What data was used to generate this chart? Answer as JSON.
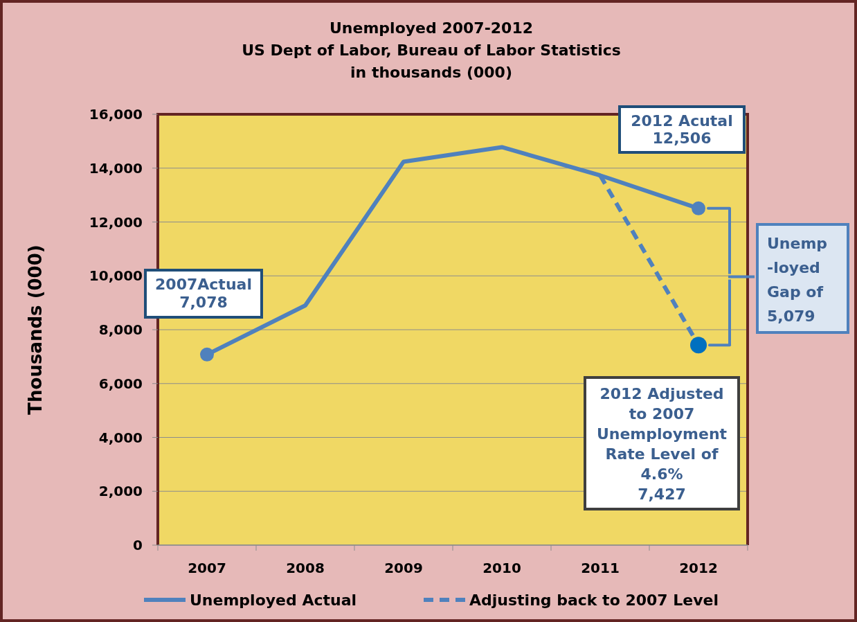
{
  "chart_data": {
    "type": "line",
    "title": "Unemployed 2007-2012\nUS Dept of Labor, Bureau of Labor Statistics\nin thousands (000)",
    "ylabel": "Thousands (000)",
    "categories": [
      "2007",
      "2008",
      "2009",
      "2010",
      "2011",
      "2012"
    ],
    "series": [
      {
        "name": "Unemployed Actual",
        "color": "#4f81bd",
        "values": [
          7078,
          8900,
          14240,
          14780,
          13730,
          12506
        ]
      },
      {
        "name": "Adjusting back to 2007 Level",
        "color": "#4f81bd",
        "line_style": "dashed",
        "values": [
          null,
          null,
          null,
          null,
          13730,
          7427
        ]
      },
      {
        "type": "scatter",
        "color": "#4f81bd",
        "marker": "circle",
        "values": [
          7078,
          null,
          null,
          null,
          null,
          12506
        ]
      },
      {
        "type": "scatter",
        "color": "#0070c0",
        "marker": "circle",
        "values": [
          null,
          null,
          null,
          null,
          null,
          7427
        ]
      }
    ],
    "ylim": [
      0,
      16000
    ],
    "yticks": [
      {
        "value": 0,
        "label": "0"
      },
      {
        "value": 2000,
        "label": "2,000"
      },
      {
        "value": 4000,
        "label": "4,000"
      },
      {
        "value": 6000,
        "label": "6,000"
      },
      {
        "value": 8000,
        "label": "8,000"
      },
      {
        "value": 10000,
        "label": "10,000"
      },
      {
        "value": 12000,
        "label": "12,000"
      },
      {
        "value": 14000,
        "label": "14,000"
      },
      {
        "value": 16000,
        "label": "16,000"
      }
    ],
    "grid": "y",
    "legend": "bottom",
    "line_style": "solid",
    "annotations": [
      "2007Actual\n7,078",
      "2012 Acutal\n12,506",
      "Unemp\n-loyed\nGap of\n5,079",
      "2012 Adjusted\nto 2007\nUnemployment\nRate Level of\n4.6%\n7,427"
    ]
  }
}
